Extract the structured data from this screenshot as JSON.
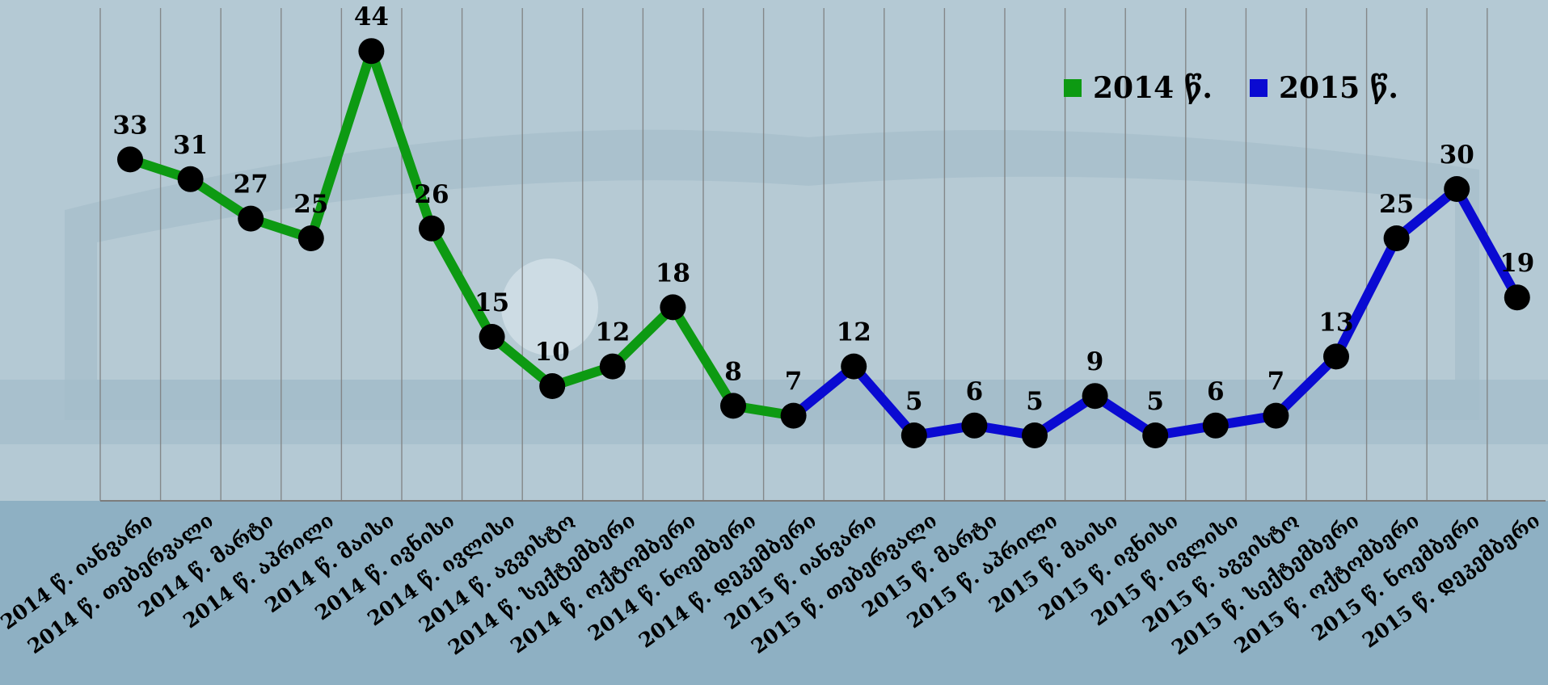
{
  "chart_data": {
    "type": "line",
    "categories": [
      "2014 წ. იანვარი",
      "2014 წ. თებერვალი",
      "2014 წ. მარტი",
      "2014 წ. აპრილი",
      "2014 წ. მაისი",
      "2014 წ. ივნისი",
      "2014 წ. ივლისი",
      "2014 წ. აგვისტო",
      "2014 წ. სექტემბერი",
      "2014 წ. ოქტომბერი",
      "2014 წ. ნოემბერი",
      "2014 წ. დეკემბერი",
      "2015 წ. იანვარი",
      "2015 წ. თებერვალი",
      "2015 წ. მარტი",
      "2015 წ. აპრილი",
      "2015 წ. მაისი",
      "2015 წ. ივნისი",
      "2015 წ. ივლისი",
      "2015 წ. აგვისტო",
      "2015 წ. სექტემბერი",
      "2015 წ. ოქტომბერი",
      "2015 წ. ნოემბერი",
      "2015 წ. დეკემბერი"
    ],
    "values": [
      33,
      31,
      27,
      25,
      44,
      26,
      15,
      10,
      12,
      18,
      8,
      7,
      12,
      5,
      6,
      5,
      9,
      5,
      6,
      7,
      13,
      25,
      30,
      19
    ],
    "series": [
      {
        "name": "2014 წ.",
        "color": "#0d9a12",
        "start_index": 0,
        "end_index": 11
      },
      {
        "name": "2015 წ.",
        "color": "#0a0ad2",
        "start_index": 11,
        "end_index": 23
      }
    ],
    "ylim": [
      0,
      50
    ],
    "grid": "vertical",
    "legend": "top-right",
    "marker_color": "#000000",
    "data_labels": true
  }
}
